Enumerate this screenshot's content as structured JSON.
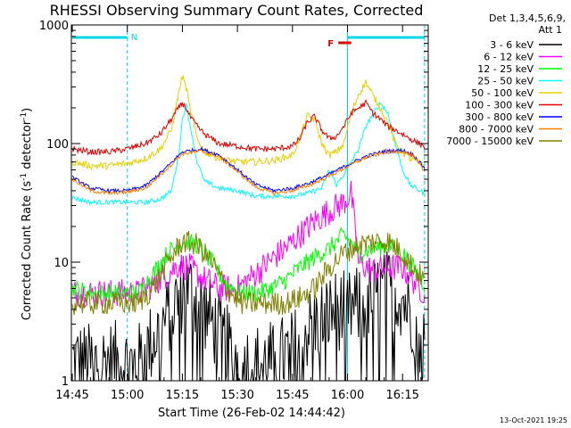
{
  "chart_data": {
    "type": "line",
    "title": "RHESSI Observing Summary Count Rates, Corrected",
    "xlabel": "Start Time (26-Feb-02 14:44:42)",
    "ylabel_main": "Corrected Count Rate (s",
    "ylabel_sup1": "-1",
    "ylabel_mid": " detector",
    "ylabel_sup2": "-1",
    "ylabel_end": ")",
    "yscale": "log",
    "ylim": [
      1,
      1000
    ],
    "xlim_minutes": [
      -0.25,
      97
    ],
    "x_unit": "minutes after 14:45",
    "x_ticks": [
      {
        "label": "14:45",
        "value": 0
      },
      {
        "label": "15:00",
        "value": 15
      },
      {
        "label": "15:15",
        "value": 30
      },
      {
        "label": "15:30",
        "value": 45
      },
      {
        "label": "15:45",
        "value": 60
      },
      {
        "label": "16:00",
        "value": 75
      },
      {
        "label": "16:15",
        "value": 90
      }
    ],
    "y_ticks": [
      {
        "label": "1",
        "value": 1
      },
      {
        "label": "10",
        "value": 10
      },
      {
        "label": "100",
        "value": 100
      },
      {
        "label": "1000",
        "value": 1000
      }
    ],
    "detectors": {
      "line1": "Det 1,3,4,5,6,9,",
      "line2": "Att 1"
    },
    "annotations": [
      {
        "text": "N",
        "color": "#00d8e8"
      },
      {
        "text": "F",
        "color": "#e00000"
      }
    ],
    "night_bar_minutes": [
      0,
      15
    ],
    "night_bar_end2_minutes": [
      75,
      96
    ],
    "flare_bar_minutes": [
      72.5,
      76
    ],
    "vlines_dashed": [
      15,
      96
    ],
    "vline_solid": 75,
    "series": [
      {
        "name": "3 - 6 keV",
        "color": "#000000",
        "x": [
          0,
          5,
          10,
          15,
          18,
          22,
          26,
          29,
          31,
          33,
          36,
          40,
          45,
          50,
          55,
          60,
          63,
          66,
          69,
          72,
          75,
          78,
          81,
          84,
          87,
          90,
          93,
          96
        ],
        "values": [
          1.5,
          1.4,
          1.5,
          1.4,
          1.4,
          2.2,
          3.5,
          5,
          6,
          5.5,
          4,
          2.5,
          1.5,
          1.4,
          1.5,
          1.8,
          2.5,
          3,
          3.5,
          4,
          3.8,
          4.2,
          4.8,
          5.5,
          6,
          5,
          3.5,
          2
        ]
      },
      {
        "name": "6 - 12 keV",
        "color": "#ff00ff",
        "x": [
          0,
          5,
          10,
          15,
          18,
          22,
          26,
          29,
          32,
          35,
          40,
          45,
          50,
          55,
          58,
          62,
          66,
          70,
          74,
          76,
          78,
          82,
          86,
          90,
          93,
          96
        ],
        "values": [
          5.5,
          5.5,
          5.5,
          5.5,
          5.5,
          6.5,
          8,
          9.5,
          9,
          7.5,
          6,
          6,
          8,
          11,
          13,
          17,
          22,
          27,
          32,
          38,
          10,
          8.5,
          9,
          9,
          7,
          5.5
        ]
      },
      {
        "name": "12 - 25 keV",
        "color": "#00ff00",
        "x": [
          0,
          5,
          10,
          15,
          18,
          22,
          26,
          30,
          34,
          38,
          42,
          46,
          50,
          54,
          58,
          62,
          66,
          70,
          74,
          78,
          82,
          86,
          90,
          93,
          96
        ],
        "values": [
          6,
          5.5,
          5.5,
          5.5,
          5.5,
          8,
          12,
          15,
          14,
          10,
          6.5,
          5.5,
          5.5,
          6,
          7,
          9,
          11,
          13,
          17,
          12,
          13,
          14,
          12,
          9,
          6.5
        ]
      },
      {
        "name": "25 - 50 keV",
        "color": "#00ffff",
        "x": [
          0,
          5,
          10,
          15,
          20,
          24,
          27,
          29,
          30,
          31,
          32,
          34,
          36,
          40,
          45,
          50,
          55,
          60,
          64,
          68,
          70,
          72,
          74,
          76,
          78,
          80,
          82,
          84,
          86,
          88,
          90,
          92,
          96
        ],
        "values": [
          35,
          32,
          32,
          32,
          32,
          34,
          40,
          80,
          160,
          210,
          150,
          70,
          48,
          42,
          40,
          36,
          36,
          36,
          38,
          42,
          60,
          45,
          55,
          70,
          90,
          140,
          180,
          220,
          180,
          100,
          60,
          45,
          38
        ]
      },
      {
        "name": "50 - 100 keV",
        "color": "#e8d000",
        "x": [
          0,
          5,
          10,
          15,
          20,
          24,
          27,
          29,
          30,
          31,
          32,
          34,
          36,
          40,
          45,
          50,
          55,
          60,
          62,
          64,
          66,
          68,
          70,
          72,
          74,
          76,
          78,
          80,
          82,
          84,
          86,
          88,
          90,
          92,
          96
        ],
        "values": [
          70,
          65,
          65,
          68,
          75,
          90,
          130,
          270,
          370,
          300,
          200,
          110,
          85,
          75,
          70,
          70,
          72,
          80,
          110,
          170,
          160,
          100,
          80,
          85,
          100,
          180,
          260,
          330,
          250,
          200,
          150,
          100,
          85,
          75,
          65
        ]
      },
      {
        "name": "100 - 300 keV",
        "color": "#e00000",
        "x": [
          0,
          5,
          10,
          15,
          20,
          24,
          27,
          29,
          30,
          31,
          32,
          34,
          36,
          40,
          45,
          50,
          55,
          60,
          62,
          64,
          66,
          68,
          70,
          72,
          74,
          76,
          78,
          80,
          82,
          84,
          86,
          88,
          90,
          92,
          96
        ],
        "values": [
          90,
          85,
          85,
          90,
          100,
          120,
          160,
          200,
          220,
          200,
          170,
          140,
          120,
          100,
          95,
          90,
          90,
          95,
          110,
          150,
          170,
          130,
          110,
          115,
          140,
          180,
          200,
          220,
          180,
          160,
          140,
          130,
          120,
          110,
          95
        ]
      },
      {
        "name": "300 - 800 keV",
        "color": "#0000ff",
        "x": [
          0,
          5,
          10,
          15,
          20,
          25,
          30,
          35,
          40,
          45,
          50,
          55,
          60,
          65,
          70,
          75,
          80,
          85,
          90,
          93,
          96
        ],
        "values": [
          52,
          42,
          40,
          40,
          44,
          60,
          85,
          90,
          80,
          60,
          45,
          40,
          42,
          47,
          55,
          66,
          78,
          86,
          88,
          80,
          62
        ]
      },
      {
        "name": "800 - 7000 keV",
        "color": "#ff8000",
        "x": [
          0,
          5,
          10,
          15,
          20,
          25,
          30,
          35,
          40,
          45,
          50,
          55,
          60,
          65,
          70,
          75,
          80,
          85,
          90,
          93,
          96
        ],
        "values": [
          50,
          40,
          38,
          39,
          42,
          58,
          82,
          86,
          78,
          58,
          43,
          38,
          40,
          45,
          53,
          64,
          76,
          84,
          86,
          78,
          58
        ]
      },
      {
        "name": "7000 - 15000 keV",
        "color": "#808000",
        "x": [
          0,
          5,
          10,
          15,
          18,
          22,
          26,
          30,
          34,
          38,
          42,
          46,
          50,
          54,
          58,
          62,
          66,
          70,
          74,
          78,
          82,
          86,
          90,
          93,
          96
        ],
        "values": [
          4.5,
          4.5,
          4.5,
          4.5,
          4.5,
          6,
          10,
          15,
          14,
          10,
          6,
          4.5,
          4.5,
          4.5,
          4.5,
          5,
          6,
          9,
          12,
          14,
          15,
          15,
          12,
          9,
          7
        ]
      }
    ],
    "grid": false,
    "legend": "right-outside"
  },
  "footer_timestamp": "13-Oct-2021 19:25"
}
